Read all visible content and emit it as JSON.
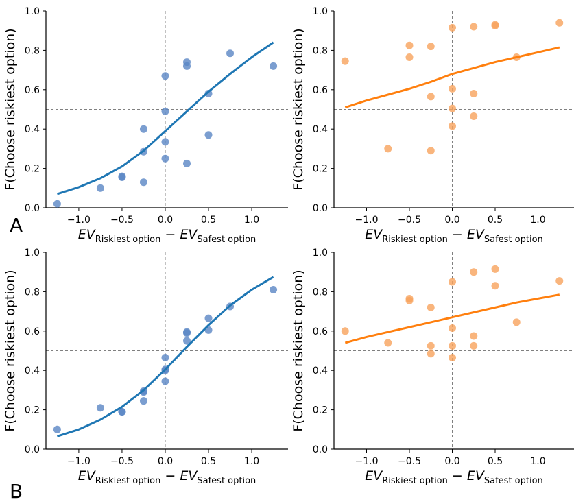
{
  "panel_labels": [
    "A",
    "B"
  ],
  "colors": {
    "blue_line": "#1f77b4",
    "blue_points": "#5a86c4",
    "orange_line": "#ff7f0e",
    "orange_points": "#f7a35c",
    "reference_line": "#808080"
  },
  "chart_data": [
    {
      "type": "scatter",
      "panel": "A",
      "color": "blue",
      "ylabel": "F(Choose riskiest option)",
      "xlabel": {
        "main_1": "EV",
        "sub_1": "Riskiest option",
        "minus": " − ",
        "main_2": "EV",
        "sub_2": "Safest option"
      },
      "xlim": [
        -1.38,
        1.42
      ],
      "ylim": [
        0,
        1
      ],
      "xticks": [
        -1.0,
        -0.5,
        0.0,
        0.5,
        1.0
      ],
      "xtick_labels": [
        "−1.0",
        "−0.5",
        "0.0",
        "0.5",
        "1.0"
      ],
      "yticks": [
        0.0,
        0.2,
        0.4,
        0.6,
        0.8,
        1.0
      ],
      "ytick_labels": [
        "0.0",
        "0.2",
        "0.4",
        "0.6",
        "0.8",
        "1.0"
      ],
      "reference_lines": {
        "x": 0,
        "y": 0.5
      },
      "points": [
        [
          -1.25,
          0.02
        ],
        [
          -0.75,
          0.1
        ],
        [
          -0.5,
          0.16
        ],
        [
          -0.5,
          0.155
        ],
        [
          -0.25,
          0.4
        ],
        [
          -0.25,
          0.285
        ],
        [
          -0.25,
          0.13
        ],
        [
          0,
          0.67
        ],
        [
          0,
          0.49
        ],
        [
          0,
          0.335
        ],
        [
          0,
          0.25
        ],
        [
          0.25,
          0.74
        ],
        [
          0.25,
          0.72
        ],
        [
          0.25,
          0.225
        ],
        [
          0.5,
          0.58
        ],
        [
          0.5,
          0.37
        ],
        [
          0.75,
          0.785
        ],
        [
          1.25,
          0.72
        ]
      ],
      "fit_curve": [
        [
          -1.25,
          0.07
        ],
        [
          -1.0,
          0.105
        ],
        [
          -0.75,
          0.15
        ],
        [
          -0.5,
          0.21
        ],
        [
          -0.25,
          0.29
        ],
        [
          0.0,
          0.39
        ],
        [
          0.25,
          0.49
        ],
        [
          0.5,
          0.59
        ],
        [
          0.75,
          0.68
        ],
        [
          1.0,
          0.765
        ],
        [
          1.25,
          0.84
        ]
      ]
    },
    {
      "type": "scatter",
      "panel": "A",
      "color": "orange",
      "ylabel": "F(Choose riskiest option)",
      "xlabel": {
        "main_1": "EV",
        "sub_1": "Riskiest option",
        "minus": " − ",
        "main_2": "EV",
        "sub_2": "Safest option"
      },
      "xlim": [
        -1.38,
        1.42
      ],
      "ylim": [
        0,
        1
      ],
      "xticks": [
        -1.0,
        -0.5,
        0.0,
        0.5,
        1.0
      ],
      "xtick_labels": [
        "−1.0",
        "−0.5",
        "0.0",
        "0.5",
        "1.0"
      ],
      "yticks": [
        0.0,
        0.2,
        0.4,
        0.6,
        0.8,
        1.0
      ],
      "ytick_labels": [
        "0.0",
        "0.2",
        "0.4",
        "0.6",
        "0.8",
        "1.0"
      ],
      "reference_lines": {
        "x": 0,
        "y": 0.5
      },
      "points": [
        [
          -1.25,
          0.745
        ],
        [
          -0.75,
          0.3
        ],
        [
          -0.5,
          0.825
        ],
        [
          -0.5,
          0.765
        ],
        [
          -0.25,
          0.82
        ],
        [
          -0.25,
          0.565
        ],
        [
          -0.25,
          0.29
        ],
        [
          0,
          0.915
        ],
        [
          0,
          0.605
        ],
        [
          0,
          0.505
        ],
        [
          0,
          0.415
        ],
        [
          0.25,
          0.92
        ],
        [
          0.25,
          0.58
        ],
        [
          0.25,
          0.465
        ],
        [
          0.5,
          0.93
        ],
        [
          0.5,
          0.925
        ],
        [
          0.75,
          0.765
        ],
        [
          1.25,
          0.94
        ]
      ],
      "fit_curve": [
        [
          -1.25,
          0.51
        ],
        [
          -1.0,
          0.545
        ],
        [
          -0.75,
          0.575
        ],
        [
          -0.5,
          0.605
        ],
        [
          -0.25,
          0.64
        ],
        [
          0.0,
          0.68
        ],
        [
          0.25,
          0.71
        ],
        [
          0.5,
          0.74
        ],
        [
          0.75,
          0.765
        ],
        [
          1.0,
          0.79
        ],
        [
          1.25,
          0.815
        ]
      ]
    },
    {
      "type": "scatter",
      "panel": "B",
      "color": "blue",
      "ylabel": "F(Choose riskiest option)",
      "xlabel": {
        "main_1": "EV",
        "sub_1": "Riskiest option",
        "minus": " − ",
        "main_2": "EV",
        "sub_2": "Safest option"
      },
      "xlim": [
        -1.38,
        1.42
      ],
      "ylim": [
        0,
        1
      ],
      "xticks": [
        -1.0,
        -0.5,
        0.0,
        0.5,
        1.0
      ],
      "xtick_labels": [
        "−1.0",
        "−0.5",
        "0.0",
        "0.5",
        "1.0"
      ],
      "yticks": [
        0.0,
        0.2,
        0.4,
        0.6,
        0.8,
        1.0
      ],
      "ytick_labels": [
        "0.0",
        "0.2",
        "0.4",
        "0.6",
        "0.8",
        "1.0"
      ],
      "reference_lines": {
        "x": 0,
        "y": 0.5
      },
      "points": [
        [
          -1.25,
          0.1
        ],
        [
          -0.75,
          0.21
        ],
        [
          -0.5,
          0.19
        ],
        [
          -0.5,
          0.19
        ],
        [
          -0.25,
          0.295
        ],
        [
          -0.25,
          0.29
        ],
        [
          -0.25,
          0.245
        ],
        [
          0,
          0.465
        ],
        [
          0,
          0.405
        ],
        [
          0,
          0.4
        ],
        [
          0,
          0.345
        ],
        [
          0.25,
          0.595
        ],
        [
          0.25,
          0.59
        ],
        [
          0.25,
          0.55
        ],
        [
          0.5,
          0.665
        ],
        [
          0.5,
          0.605
        ],
        [
          0.75,
          0.725
        ],
        [
          1.25,
          0.81
        ]
      ],
      "fit_curve": [
        [
          -1.25,
          0.065
        ],
        [
          -1.0,
          0.1
        ],
        [
          -0.75,
          0.15
        ],
        [
          -0.5,
          0.215
        ],
        [
          -0.25,
          0.3
        ],
        [
          0.0,
          0.405
        ],
        [
          0.25,
          0.52
        ],
        [
          0.5,
          0.63
        ],
        [
          0.75,
          0.73
        ],
        [
          1.0,
          0.81
        ],
        [
          1.25,
          0.875
        ]
      ]
    },
    {
      "type": "scatter",
      "panel": "B",
      "color": "orange",
      "ylabel": "F(Choose riskiest option)",
      "xlabel": {
        "main_1": "EV",
        "sub_1": "Riskiest option",
        "minus": " − ",
        "main_2": "EV",
        "sub_2": "Safest option"
      },
      "xlim": [
        -1.38,
        1.42
      ],
      "ylim": [
        0,
        1
      ],
      "xticks": [
        -1.0,
        -0.5,
        0.0,
        0.5,
        1.0
      ],
      "xtick_labels": [
        "−1.0",
        "−0.5",
        "0.0",
        "0.5",
        "1.0"
      ],
      "yticks": [
        0.0,
        0.2,
        0.4,
        0.6,
        0.8,
        1.0
      ],
      "ytick_labels": [
        "0.0",
        "0.2",
        "0.4",
        "0.6",
        "0.8",
        "1.0"
      ],
      "reference_lines": {
        "x": 0,
        "y": 0.5
      },
      "points": [
        [
          -1.25,
          0.6
        ],
        [
          -0.75,
          0.54
        ],
        [
          -0.5,
          0.765
        ],
        [
          -0.5,
          0.755
        ],
        [
          -0.25,
          0.72
        ],
        [
          -0.25,
          0.525
        ],
        [
          -0.25,
          0.485
        ],
        [
          0,
          0.85
        ],
        [
          0,
          0.615
        ],
        [
          0,
          0.525
        ],
        [
          0,
          0.465
        ],
        [
          0.25,
          0.9
        ],
        [
          0.25,
          0.575
        ],
        [
          0.25,
          0.525
        ],
        [
          0.5,
          0.915
        ],
        [
          0.5,
          0.83
        ],
        [
          0.75,
          0.645
        ],
        [
          1.25,
          0.855
        ]
      ],
      "fit_curve": [
        [
          -1.25,
          0.54
        ],
        [
          -1.0,
          0.57
        ],
        [
          -0.75,
          0.595
        ],
        [
          -0.5,
          0.62
        ],
        [
          -0.25,
          0.645
        ],
        [
          0.0,
          0.67
        ],
        [
          0.25,
          0.695
        ],
        [
          0.5,
          0.72
        ],
        [
          0.75,
          0.745
        ],
        [
          1.0,
          0.765
        ],
        [
          1.25,
          0.785
        ]
      ]
    }
  ]
}
